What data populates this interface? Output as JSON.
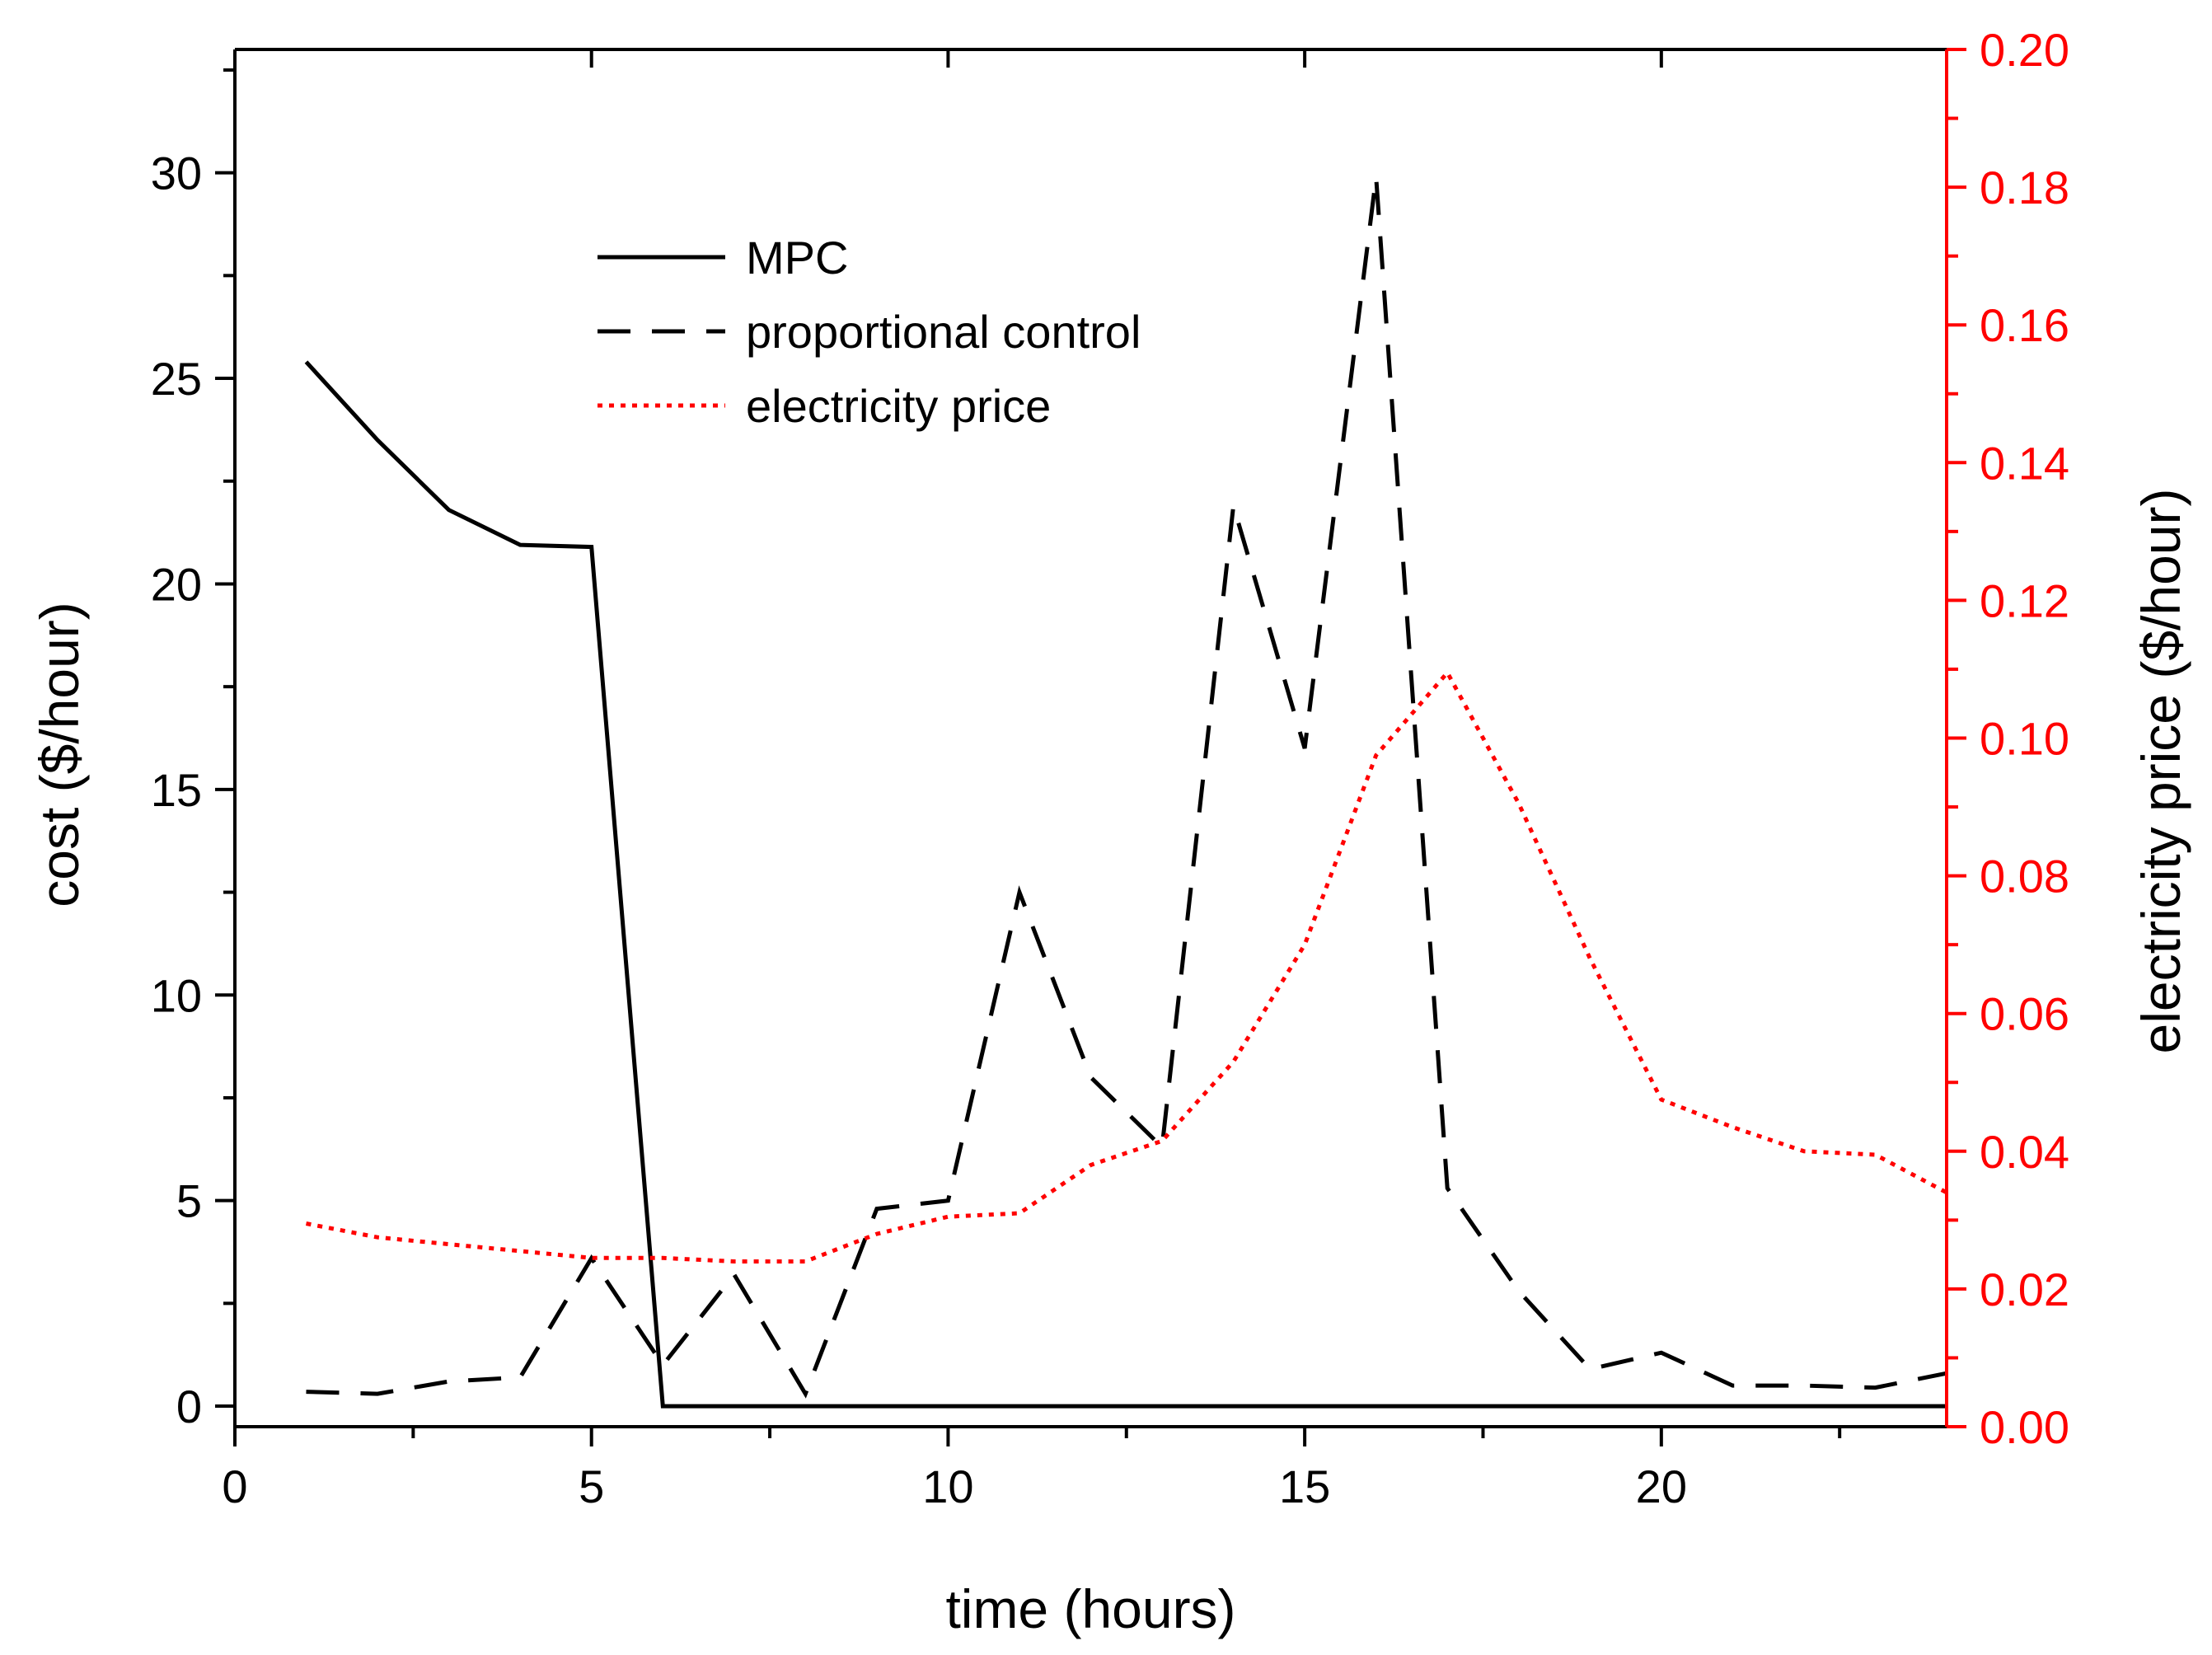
{
  "chart_data": {
    "type": "line",
    "xlabel": "time (hours)",
    "ylabel": "cost ($/hour)",
    "y2label": "electricity price ($/hour)",
    "xlim": [
      0,
      24
    ],
    "ylim": [
      -0.5,
      33
    ],
    "y2lim": [
      0,
      0.2
    ],
    "x_ticks": [
      "0",
      "5",
      "10",
      "15",
      "20"
    ],
    "y_ticks": [
      "0",
      "5",
      "10",
      "15",
      "20",
      "25",
      "30"
    ],
    "y2_ticks": [
      "0.00",
      "0.02",
      "0.04",
      "0.06",
      "0.08",
      "0.10",
      "0.12",
      "0.14",
      "0.16",
      "0.18",
      "0.20"
    ],
    "legend_position": "top-center",
    "series": [
      {
        "name": "MPC",
        "axis": "left",
        "style": "solid",
        "color": "#000000",
        "x": [
          1,
          2,
          3,
          4,
          5,
          6,
          7,
          8,
          9,
          10,
          11,
          12,
          13,
          14,
          15,
          16,
          17,
          18,
          19,
          20,
          21,
          22,
          23,
          24
        ],
        "values": [
          25.4,
          23.5,
          21.8,
          20.95,
          20.9,
          0,
          0,
          0,
          0,
          0,
          0,
          0,
          0,
          0,
          0,
          0,
          0,
          0,
          0,
          0,
          0,
          0,
          0,
          0
        ]
      },
      {
        "name": "proportional control",
        "axis": "left",
        "style": "dashed",
        "color": "#000000",
        "x": [
          1,
          2,
          3,
          4,
          5,
          6,
          7,
          8,
          9,
          10,
          11,
          12,
          13,
          14,
          15,
          16,
          17,
          18,
          19,
          20,
          21,
          22,
          23,
          24
        ],
        "values": [
          0.35,
          0.3,
          0.6,
          0.7,
          3.6,
          1.0,
          3.2,
          0.3,
          4.8,
          5.0,
          12.5,
          8.0,
          6.3,
          21.9,
          16.0,
          29.9,
          5.3,
          2.8,
          0.9,
          1.3,
          0.5,
          0.5,
          0.45,
          0.8
        ]
      },
      {
        "name": "electricity price",
        "axis": "right",
        "style": "dotted",
        "color": "#ff0000",
        "x": [
          1,
          2,
          3,
          4,
          5,
          6,
          7,
          8,
          9,
          10,
          11,
          12,
          13,
          14,
          15,
          16,
          17,
          18,
          19,
          20,
          21,
          22,
          23,
          24
        ],
        "values": [
          0.0295,
          0.0275,
          0.0265,
          0.0255,
          0.0245,
          0.0245,
          0.024,
          0.024,
          0.028,
          0.0305,
          0.031,
          0.038,
          0.0415,
          0.053,
          0.07,
          0.0975,
          0.1095,
          0.0905,
          0.068,
          0.0475,
          0.0435,
          0.04,
          0.0395,
          0.034
        ]
      }
    ]
  },
  "colors": {
    "axis": "#000000",
    "right_axis": "#ff0000",
    "background": "#ffffff"
  }
}
